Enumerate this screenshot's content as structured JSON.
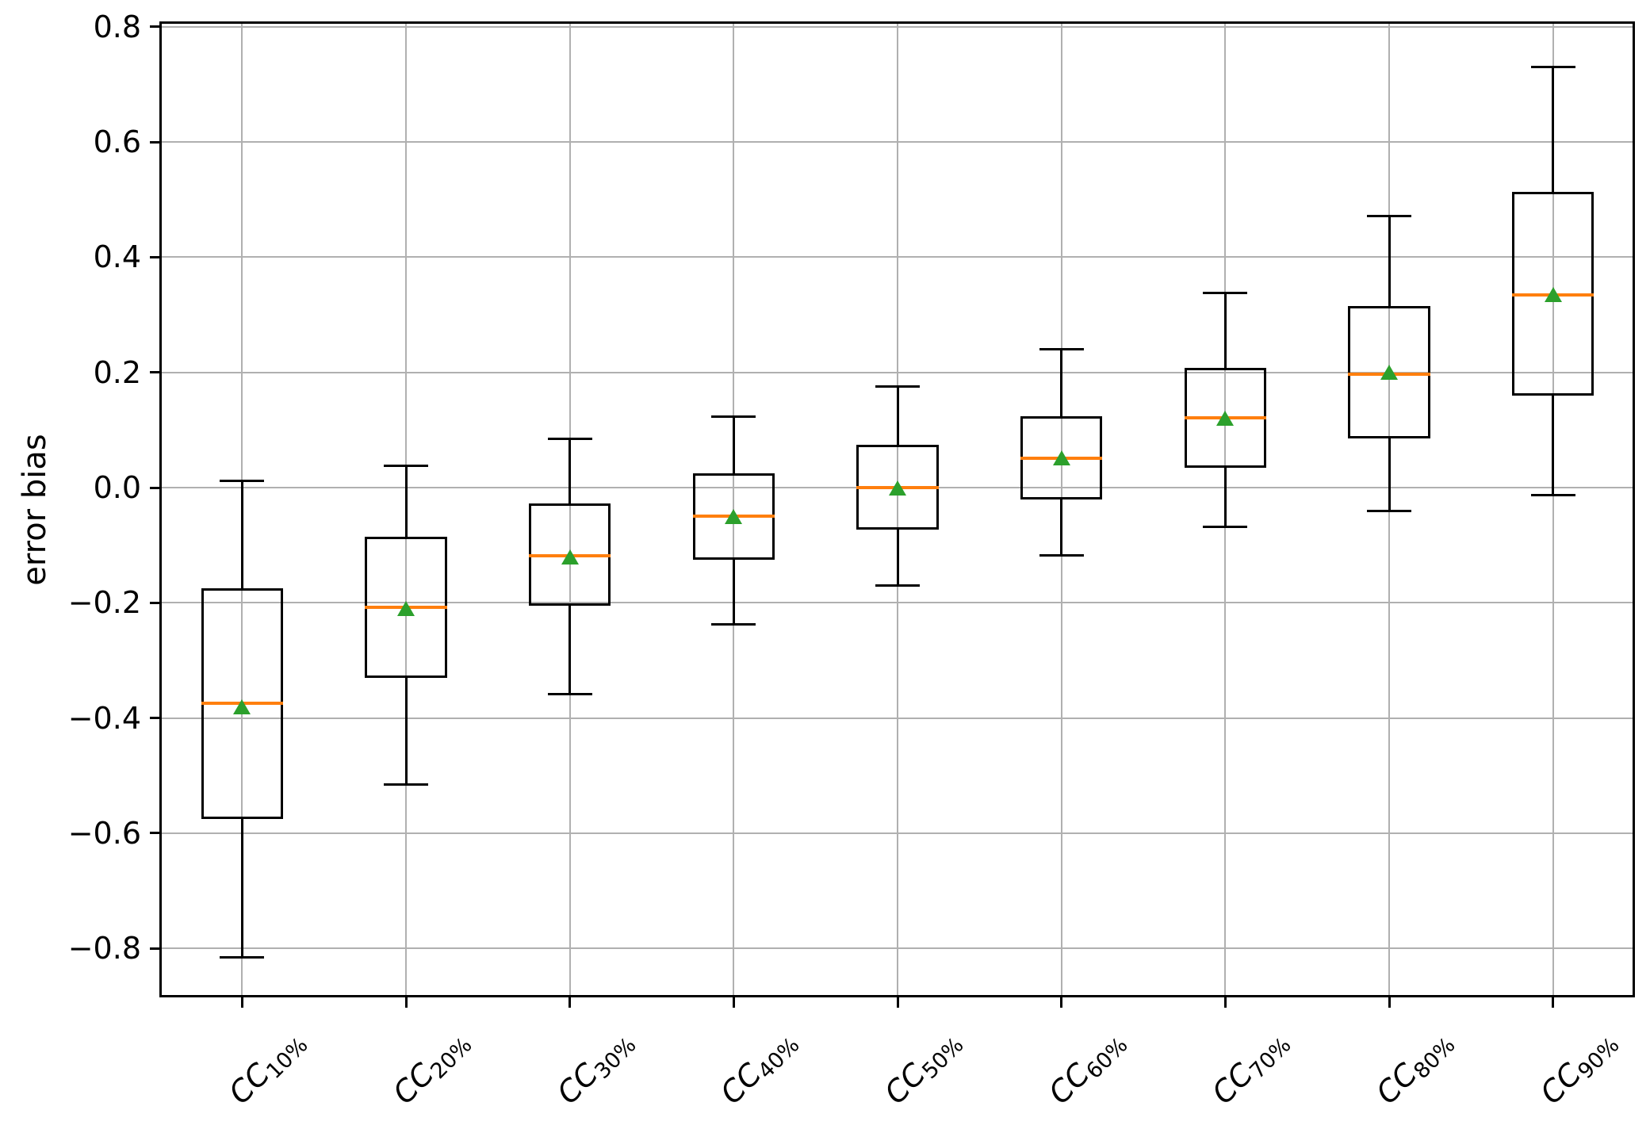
{
  "chart_data": {
    "type": "box",
    "title": "",
    "xlabel": "",
    "ylabel": "error bias",
    "grid": true,
    "legend": null,
    "xtick_rotation": 45,
    "ylim": [
      -0.885,
      0.808
    ],
    "yticks": [
      {
        "v": 0.8,
        "label": "0.8"
      },
      {
        "v": 0.6,
        "label": "0.6"
      },
      {
        "v": 0.4,
        "label": "0.4"
      },
      {
        "v": 0.2,
        "label": "0.2"
      },
      {
        "v": 0.0,
        "label": "0.0"
      },
      {
        "v": -0.2,
        "label": "−0.2"
      },
      {
        "v": -0.4,
        "label": "−0.4"
      },
      {
        "v": -0.6,
        "label": "−0.6"
      },
      {
        "v": -0.8,
        "label": "−0.8"
      }
    ],
    "categories": [
      {
        "base": "CC",
        "sub": "10%"
      },
      {
        "base": "CC",
        "sub": "20%"
      },
      {
        "base": "CC",
        "sub": "30%"
      },
      {
        "base": "CC",
        "sub": "40%"
      },
      {
        "base": "CC",
        "sub": "50%"
      },
      {
        "base": "CC",
        "sub": "60%"
      },
      {
        "base": "CC",
        "sub": "70%"
      },
      {
        "base": "CC",
        "sub": "80%"
      },
      {
        "base": "CC",
        "sub": "90%"
      }
    ],
    "boxes": [
      {
        "whislo": -0.815,
        "q1": -0.575,
        "med": -0.375,
        "mean": -0.38,
        "q3": -0.175,
        "whishi": 0.012
      },
      {
        "whislo": -0.515,
        "q1": -0.33,
        "med": -0.208,
        "mean": -0.21,
        "q3": -0.085,
        "whishi": 0.038
      },
      {
        "whislo": -0.358,
        "q1": -0.205,
        "med": -0.118,
        "mean": -0.12,
        "q3": -0.028,
        "whishi": 0.085
      },
      {
        "whislo": -0.238,
        "q1": -0.125,
        "med": -0.05,
        "mean": -0.05,
        "q3": 0.025,
        "whishi": 0.123
      },
      {
        "whislo": -0.17,
        "q1": -0.073,
        "med": 0.0,
        "mean": 0.0,
        "q3": 0.075,
        "whishi": 0.175
      },
      {
        "whislo": -0.118,
        "q1": -0.02,
        "med": 0.051,
        "mean": 0.051,
        "q3": 0.124,
        "whishi": 0.24
      },
      {
        "whislo": -0.068,
        "q1": 0.034,
        "med": 0.121,
        "mean": 0.121,
        "q3": 0.208,
        "whishi": 0.338
      },
      {
        "whislo": -0.04,
        "q1": 0.085,
        "med": 0.197,
        "mean": 0.2,
        "q3": 0.315,
        "whishi": 0.472
      },
      {
        "whislo": -0.013,
        "q1": 0.16,
        "med": 0.335,
        "mean": 0.335,
        "q3": 0.513,
        "whishi": 0.73
      }
    ],
    "box_width_frac": 0.5,
    "cap_width_frac": 0.27,
    "mean_marker": "triangle-up",
    "colors": {
      "median": "#ff7f0e",
      "mean": "#2ca02c",
      "line": "#000000",
      "grid": "#b0b0b0",
      "background": "#ffffff"
    }
  }
}
